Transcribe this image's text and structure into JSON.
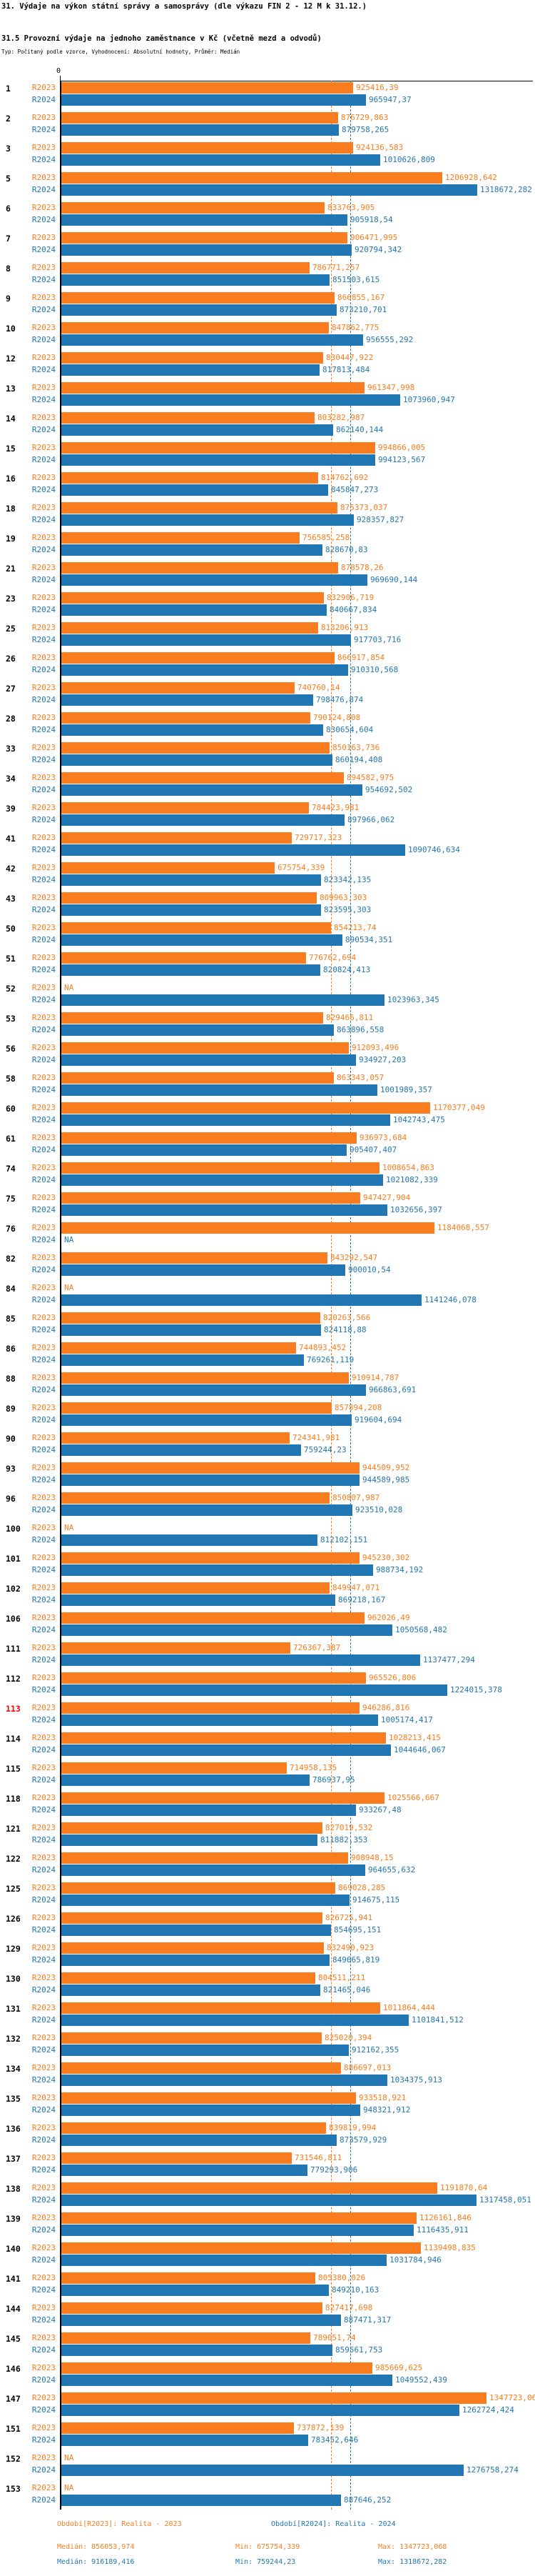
{
  "header": {
    "title": "31. Výdaje na výkon státní správy a samosprávy (dle výkazu FIN 2 - 12 M k 31.12.)",
    "subtitle": "31.5 Provozní výdaje na jednoho zaměstnance v Kč (včetně mezd a odvodů)",
    "meta": "Typ: Počítaný podle vzorce, Vyhodnocení: Absolutní hodnoty, Průměr: Medián"
  },
  "chart_data": {
    "type": "bar",
    "orientation": "horizontal",
    "title": "31.5 Provozní výdaje na jednoho zaměstnance v Kč (včetně mezd a odvodů)",
    "xlabel": "",
    "ylabel": "",
    "axis": {
      "zero": "0",
      "xlim": [
        0,
        1500000
      ]
    },
    "series": [
      {
        "name": "R2023",
        "label": "Období[R2023]: Realita - 2023",
        "color": "#f97d1e"
      },
      {
        "name": "R2024",
        "label": "Období[R2024]: Realita - 2024",
        "color": "#2077b4"
      }
    ],
    "colors": {
      "r2023": "#f97d1e",
      "r2024": "#2077b4",
      "highlight": "#ff0000"
    },
    "highlight_n": "113",
    "medians": {
      "r2023": "856053,974",
      "r2024": "916189,416"
    },
    "entries": [
      {
        "n": "1",
        "r2023": "925416,39",
        "r2024": "965947,37"
      },
      {
        "n": "2",
        "r2023": "876729,863",
        "r2024": "879758,265"
      },
      {
        "n": "3",
        "r2023": "924136,583",
        "r2024": "1010626,809"
      },
      {
        "n": "5",
        "r2023": "1206928,642",
        "r2024": "1318672,282"
      },
      {
        "n": "6",
        "r2023": "833763,905",
        "r2024": "905918,54"
      },
      {
        "n": "7",
        "r2023": "906471,995",
        "r2024": "920794,342"
      },
      {
        "n": "8",
        "r2023": "786771,257",
        "r2024": "851503,615"
      },
      {
        "n": "9",
        "r2023": "866855,167",
        "r2024": "873210,701"
      },
      {
        "n": "10",
        "r2023": "847862,775",
        "r2024": "956555,292"
      },
      {
        "n": "12",
        "r2023": "830447,922",
        "r2024": "817813,484"
      },
      {
        "n": "13",
        "r2023": "961347,998",
        "r2024": "1073960,947"
      },
      {
        "n": "14",
        "r2023": "803282,987",
        "r2024": "862140,144"
      },
      {
        "n": "15",
        "r2023": "994866,005",
        "r2024": "994123,567"
      },
      {
        "n": "16",
        "r2023": "814762,692",
        "r2024": "845847,273"
      },
      {
        "n": "18",
        "r2023": "875373,037",
        "r2024": "928357,827"
      },
      {
        "n": "19",
        "r2023": "756585,258",
        "r2024": "828670,83"
      },
      {
        "n": "21",
        "r2023": "878578,26",
        "r2024": "969690,144"
      },
      {
        "n": "23",
        "r2023": "832906,719",
        "r2024": "840667,834"
      },
      {
        "n": "25",
        "r2023": "813206,913",
        "r2024": "917703,716"
      },
      {
        "n": "26",
        "r2023": "866917,854",
        "r2024": "910310,568"
      },
      {
        "n": "27",
        "r2023": "740760,14",
        "r2024": "798476,874"
      },
      {
        "n": "28",
        "r2023": "790124,808",
        "r2024": "830654,604"
      },
      {
        "n": "33",
        "r2023": "850163,736",
        "r2024": "860194,408"
      },
      {
        "n": "34",
        "r2023": "894582,975",
        "r2024": "954692,502"
      },
      {
        "n": "39",
        "r2023": "784423,981",
        "r2024": "897966,062"
      },
      {
        "n": "41",
        "r2023": "729717,323",
        "r2024": "1090746,634"
      },
      {
        "n": "42",
        "r2023": "675754,339",
        "r2024": "823342,135"
      },
      {
        "n": "43",
        "r2023": "809963,303",
        "r2024": "823595,303"
      },
      {
        "n": "50",
        "r2023": "854213,74",
        "r2024": "890534,351"
      },
      {
        "n": "51",
        "r2023": "776762,694",
        "r2024": "820824,413"
      },
      {
        "n": "52",
        "r2023": "NA",
        "r2024": "1023963,345"
      },
      {
        "n": "53",
        "r2023": "829466,811",
        "r2024": "863896,558"
      },
      {
        "n": "56",
        "r2023": "912093,496",
        "r2024": "934927,203"
      },
      {
        "n": "58",
        "r2023": "863343,057",
        "r2024": "1001989,357"
      },
      {
        "n": "60",
        "r2023": "1170377,049",
        "r2024": "1042743,475"
      },
      {
        "n": "61",
        "r2023": "936973,684",
        "r2024": "905407,407"
      },
      {
        "n": "74",
        "r2023": "1008654,863",
        "r2024": "1021082,339"
      },
      {
        "n": "75",
        "r2023": "947427,904",
        "r2024": "1032656,397"
      },
      {
        "n": "76",
        "r2023": "1184068,557",
        "r2024": "NA"
      },
      {
        "n": "82",
        "r2023": "843292,547",
        "r2024": "900010,54"
      },
      {
        "n": "84",
        "r2023": "NA",
        "r2024": "1141246,078"
      },
      {
        "n": "85",
        "r2023": "820263,566",
        "r2024": "824118,88"
      },
      {
        "n": "86",
        "r2023": "744893,452",
        "r2024": "769261,119"
      },
      {
        "n": "88",
        "r2023": "910914,787",
        "r2024": "966863,691"
      },
      {
        "n": "89",
        "r2023": "857894,208",
        "r2024": "919604,694"
      },
      {
        "n": "90",
        "r2023": "724341,981",
        "r2024": "759244,23"
      },
      {
        "n": "93",
        "r2023": "944509,952",
        "r2024": "944589,985"
      },
      {
        "n": "96",
        "r2023": "850807,987",
        "r2024": "923510,028"
      },
      {
        "n": "100",
        "r2023": "NA",
        "r2024": "812102,151"
      },
      {
        "n": "101",
        "r2023": "945230,302",
        "r2024": "988734,192"
      },
      {
        "n": "102",
        "r2023": "849947,071",
        "r2024": "869218,167"
      },
      {
        "n": "106",
        "r2023": "962026,49",
        "r2024": "1050568,482"
      },
      {
        "n": "111",
        "r2023": "726367,387",
        "r2024": "1137477,294"
      },
      {
        "n": "112",
        "r2023": "965526,806",
        "r2024": "1224015,378"
      },
      {
        "n": "113",
        "r2023": "946286,816",
        "r2024": "1005174,417"
      },
      {
        "n": "114",
        "r2023": "1028213,415",
        "r2024": "1044646,067"
      },
      {
        "n": "115",
        "r2023": "714958,135",
        "r2024": "786937,95"
      },
      {
        "n": "118",
        "r2023": "1025566,667",
        "r2024": "933267,48"
      },
      {
        "n": "121",
        "r2023": "827019,532",
        "r2024": "811882,353"
      },
      {
        "n": "122",
        "r2023": "908948,15",
        "r2024": "964655,632"
      },
      {
        "n": "125",
        "r2023": "869028,285",
        "r2024": "914675,115"
      },
      {
        "n": "126",
        "r2023": "826725,941",
        "r2024": "854695,151"
      },
      {
        "n": "129",
        "r2023": "832490,923",
        "r2024": "849665,819"
      },
      {
        "n": "130",
        "r2023": "804511,211",
        "r2024": "821465,046"
      },
      {
        "n": "131",
        "r2023": "1011864,444",
        "r2024": "1101841,512"
      },
      {
        "n": "132",
        "r2023": "825020,394",
        "r2024": "912162,355"
      },
      {
        "n": "134",
        "r2023": "886697,013",
        "r2024": "1034375,913"
      },
      {
        "n": "135",
        "r2023": "933518,921",
        "r2024": "948321,912"
      },
      {
        "n": "136",
        "r2023": "839819,994",
        "r2024": "873579,929"
      },
      {
        "n": "137",
        "r2023": "731546,811",
        "r2024": "779293,906"
      },
      {
        "n": "138",
        "r2023": "1191870,64",
        "r2024": "1317458,051"
      },
      {
        "n": "139",
        "r2023": "1126161,846",
        "r2024": "1116435,911"
      },
      {
        "n": "140",
        "r2023": "1139498,835",
        "r2024": "1031784,946"
      },
      {
        "n": "141",
        "r2023": "805380,026",
        "r2024": "849210,163"
      },
      {
        "n": "144",
        "r2023": "827417,698",
        "r2024": "887471,317"
      },
      {
        "n": "145",
        "r2023": "789051,74",
        "r2024": "859561,753"
      },
      {
        "n": "146",
        "r2023": "985669,625",
        "r2024": "1049552,439"
      },
      {
        "n": "147",
        "r2023": "1347723,068",
        "r2024": "1262724,424"
      },
      {
        "n": "151",
        "r2023": "737872,139",
        "r2024": "783452,646"
      },
      {
        "n": "152",
        "r2023": "NA",
        "r2024": "1276758,274"
      },
      {
        "n": "153",
        "r2023": "NA",
        "r2024": "887646,252"
      }
    ]
  },
  "footer": {
    "legend_r2023": "Období[R2023]: Realita - 2023",
    "legend_r2024": "Období[R2024]: Realita - 2024",
    "stats_r2023": {
      "median": "Medián: 856053,974",
      "min": "Min: 675754,339",
      "max": "Max: 1347723,068"
    },
    "stats_r2024": {
      "median": "Medián: 916189,416",
      "min": "Min: 759244,23",
      "max": "Max: 1318672,282"
    }
  }
}
